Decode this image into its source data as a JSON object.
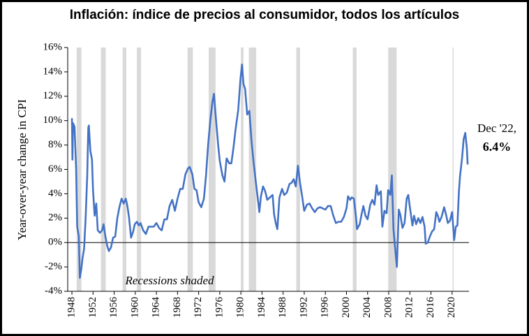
{
  "chart_data": {
    "type": "line",
    "title": "Inflación: índice de precios al consumidor, todos los artículos",
    "y_label": "Year-over-year change in CPI",
    "annotations": [
      "Recessions shaded",
      "Dec '22,",
      "6.4%"
    ],
    "xlim": [
      1947.2,
      2023.2
    ],
    "xticks": [
      1948,
      1952,
      1956,
      1960,
      1964,
      1968,
      1972,
      1976,
      1980,
      1984,
      1988,
      1992,
      1996,
      2000,
      2004,
      2008,
      2012,
      2016,
      2020
    ],
    "ylim": [
      -4,
      16
    ],
    "yticks": [
      {
        "value": -4,
        "label": "-4%"
      },
      {
        "value": -2,
        "label": "-2%"
      },
      {
        "value": 0,
        "label": "0%"
      },
      {
        "value": 2,
        "label": "2%"
      },
      {
        "value": 4,
        "label": "4%"
      },
      {
        "value": 6,
        "label": "6%"
      },
      {
        "value": 8,
        "label": "8%"
      },
      {
        "value": 10,
        "label": "10%"
      },
      {
        "value": 12,
        "label": "12%"
      },
      {
        "value": 14,
        "label": "14%"
      },
      {
        "value": 16,
        "label": "16%"
      }
    ],
    "recessions": [
      [
        1948.9,
        1949.8
      ],
      [
        1953.5,
        1954.4
      ],
      [
        1957.6,
        1958.3
      ],
      [
        1960.3,
        1961.1
      ],
      [
        1969.9,
        1970.9
      ],
      [
        1973.9,
        1975.2
      ],
      [
        1980.0,
        1980.5
      ],
      [
        1981.5,
        1982.9
      ],
      [
        1990.5,
        1991.2
      ],
      [
        2001.2,
        2001.9
      ],
      [
        2007.9,
        2009.5
      ],
      [
        2020.1,
        2020.3
      ]
    ],
    "recession_color": "#d9d9d9",
    "grid": false,
    "series": [
      {
        "color": "#4472c4",
        "x": [
          1948.0,
          1948.1,
          1948.2,
          1948.5,
          1948.8,
          1949.0,
          1949.3,
          1949.5,
          1949.8,
          1950.0,
          1950.3,
          1950.6,
          1950.9,
          1951.1,
          1951.2,
          1951.5,
          1951.8,
          1952.0,
          1952.3,
          1952.6,
          1952.9,
          1953.3,
          1953.7,
          1954.0,
          1954.3,
          1954.7,
          1955.0,
          1955.4,
          1955.8,
          1956.2,
          1956.6,
          1957.0,
          1957.4,
          1957.8,
          1958.2,
          1958.5,
          1958.8,
          1959.2,
          1959.6,
          1959.9,
          1960.3,
          1960.7,
          1961.0,
          1961.5,
          1962.0,
          1962.5,
          1963.0,
          1963.5,
          1964.0,
          1964.5,
          1965.0,
          1965.5,
          1966.0,
          1966.5,
          1967.0,
          1967.5,
          1968.0,
          1968.5,
          1969.0,
          1969.5,
          1970.0,
          1970.3,
          1970.8,
          1971.2,
          1971.6,
          1972.0,
          1972.5,
          1973.0,
          1973.4,
          1973.8,
          1974.2,
          1974.6,
          1974.9,
          1975.3,
          1975.7,
          1976.0,
          1976.5,
          1976.9,
          1977.3,
          1977.8,
          1978.2,
          1978.6,
          1979.0,
          1979.5,
          1979.9,
          1980.2,
          1980.5,
          1980.8,
          1981.2,
          1981.6,
          1982.0,
          1982.4,
          1982.8,
          1983.2,
          1983.5,
          1983.8,
          1984.2,
          1984.6,
          1985.0,
          1985.5,
          1986.0,
          1986.3,
          1986.6,
          1986.9,
          1987.3,
          1987.8,
          1988.2,
          1988.7,
          1989.2,
          1989.6,
          1990.0,
          1990.4,
          1990.8,
          1991.2,
          1991.6,
          1992.0,
          1992.5,
          1993.0,
          1993.5,
          1994.0,
          1994.5,
          1995.0,
          1995.5,
          1996.0,
          1996.5,
          1997.0,
          1997.5,
          1998.0,
          1998.5,
          1999.0,
          1999.5,
          2000.0,
          2000.3,
          2000.7,
          2001.0,
          2001.4,
          2001.8,
          2002.0,
          2002.5,
          2002.9,
          2003.2,
          2003.6,
          2004.0,
          2004.5,
          2004.9,
          2005.3,
          2005.7,
          2006.0,
          2006.5,
          2006.8,
          2007.2,
          2007.6,
          2007.9,
          2008.3,
          2008.6,
          2008.9,
          2009.2,
          2009.55,
          2009.9,
          2010.2,
          2010.6,
          2011.0,
          2011.4,
          2011.7,
          2012.0,
          2012.5,
          2012.8,
          2013.2,
          2013.6,
          2014.0,
          2014.4,
          2014.8,
          2015.0,
          2015.4,
          2015.8,
          2016.2,
          2016.6,
          2017.0,
          2017.3,
          2017.6,
          2018.0,
          2018.5,
          2018.9,
          2019.2,
          2019.6,
          2020.0,
          2020.4,
          2020.7,
          2021.0,
          2021.3,
          2021.5,
          2021.9,
          2022.2,
          2022.5,
          2022.8,
          2022.95
        ],
        "values": [
          10.2,
          6.8,
          9.8,
          9.5,
          6,
          1.3,
          0.5,
          -2.9,
          -2.1,
          -1.3,
          -0.5,
          2,
          5.5,
          9.4,
          9.6,
          7.5,
          6.8,
          4.3,
          2.2,
          3.2,
          1.0,
          0.8,
          1.0,
          1.5,
          0.6,
          -0.3,
          -0.7,
          -0.4,
          0.4,
          0.5,
          2,
          2.9,
          3.6,
          3.2,
          3.6,
          3.0,
          2.1,
          0.4,
          0.9,
          1.5,
          1.7,
          1.4,
          1.6,
          1.0,
          0.7,
          1.3,
          1.3,
          1.3,
          1.6,
          1.2,
          1.0,
          1.9,
          1.9,
          3.0,
          3.5,
          2.6,
          3.6,
          4.4,
          4.4,
          5.6,
          6.1,
          6.2,
          5.6,
          4.4,
          4.3,
          3.3,
          2.9,
          3.6,
          5.5,
          8.0,
          10,
          11.5,
          12.2,
          10.0,
          8.0,
          6.7,
          5.5,
          5.0,
          6.9,
          6.5,
          6.5,
          7.8,
          9.3,
          10.9,
          13.3,
          14.6,
          13,
          12.6,
          10.5,
          10.8,
          8.4,
          6.6,
          5.1,
          3.6,
          2.5,
          3.8,
          4.6,
          4.2,
          3.5,
          3.7,
          3.9,
          2.3,
          1.6,
          1.1,
          3.7,
          4.4,
          3.9,
          4.1,
          4.8,
          4.9,
          5.2,
          4.6,
          6.3,
          4.9,
          3.8,
          2.6,
          3.1,
          3.2,
          2.8,
          2.5,
          2.8,
          2.9,
          2.8,
          2.7,
          3.0,
          3.0,
          2.2,
          1.6,
          1.7,
          1.7,
          2.1,
          2.8,
          3.8,
          3.5,
          3.7,
          3.6,
          2.1,
          1.1,
          1.5,
          2.4,
          3.0,
          2.2,
          1.9,
          3.1,
          3.5,
          3.1,
          4.7,
          3.9,
          4.2,
          1.3,
          2.6,
          2.4,
          4.3,
          3.9,
          5.5,
          1.1,
          -0.4,
          -2.0,
          2.7,
          2.3,
          1.2,
          1.6,
          3.6,
          3.9,
          2.9,
          1.4,
          2.2,
          1.5,
          2.0,
          1.6,
          2.1,
          1.3,
          -0.1,
          0.0,
          0.5,
          0.9,
          1.1,
          2.5,
          2.2,
          1.7,
          2.1,
          2.9,
          2.2,
          1.6,
          1.8,
          2.5,
          0.2,
          1.3,
          1.4,
          4.2,
          5.4,
          7.0,
          8.5,
          9.0,
          7.7,
          6.4
        ]
      }
    ]
  }
}
